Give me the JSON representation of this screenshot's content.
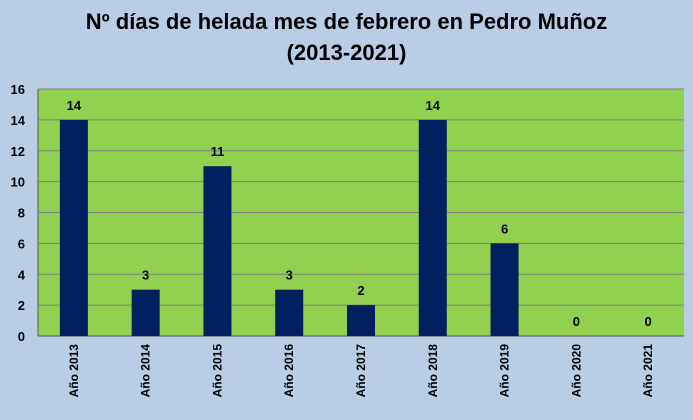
{
  "chart_data": {
    "type": "bar",
    "title_line1": "Nº días de helada mes de febrero en Pedro Muñoz",
    "title_line2": "(2013-2021)",
    "categories": [
      "Año 2013",
      "Año 2014",
      "Año 2015",
      "Año 2016",
      "Año 2017",
      "Año 2018",
      "Año 2019",
      "Año 2020",
      "Año 2021"
    ],
    "values": [
      14,
      3,
      11,
      3,
      2,
      14,
      6,
      0,
      0
    ],
    "ylim": [
      0,
      16
    ],
    "yticks": [
      0,
      2,
      4,
      6,
      8,
      10,
      12,
      14,
      16
    ],
    "grid": true,
    "legend": "none",
    "colors": {
      "background": "#b9cde5",
      "plot_area": "#92d050",
      "bar": "#002060",
      "gridline": "#7f7f7f"
    }
  }
}
